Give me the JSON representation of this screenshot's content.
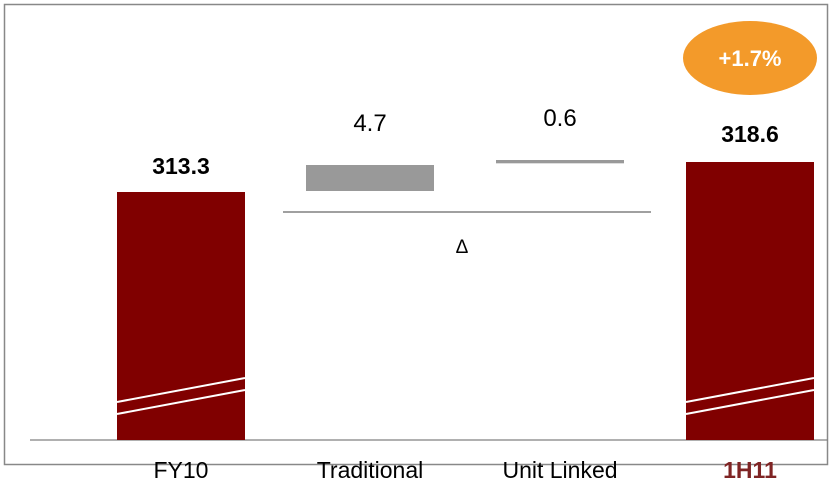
{
  "chart_data": {
    "type": "bar",
    "subtype": "waterfall",
    "categories": [
      "FY10",
      "Traditional",
      "Unit Linked",
      "1H11"
    ],
    "values": [
      313.3,
      4.7,
      0.6,
      318.6
    ],
    "value_labels": [
      "313.3",
      "4.7",
      "0.6",
      "318.6"
    ],
    "bar_roles": [
      "total",
      "delta",
      "delta",
      "total"
    ],
    "axis_break": true,
    "delta_symbol": "Δ",
    "change_badge": "+1.7%",
    "highlight_category": "1H11",
    "grid": false,
    "legend": "none"
  },
  "colors": {
    "total_bar": "#800000",
    "delta_bar": "#999999",
    "badge": "#F39A2A",
    "highlight_label": "#7F2424",
    "frame": "#888888",
    "axis": "#808080"
  }
}
